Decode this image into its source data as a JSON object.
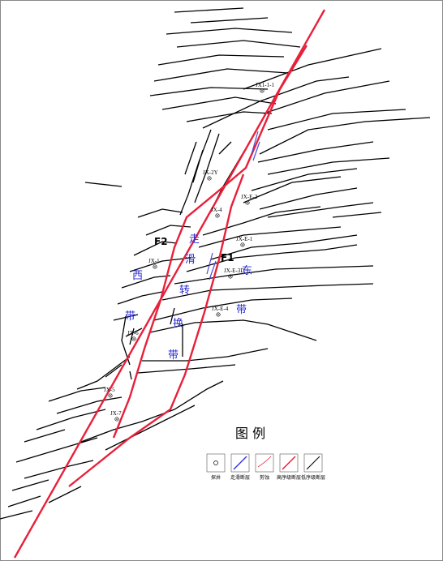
{
  "wells": [
    "JX1-1-1",
    "JX-2Y",
    "JX-E-2",
    "JX-4",
    "JX-E-1",
    "JX-1",
    "JX-E-3D",
    "JX-E-4",
    "JX-6",
    "JX-5",
    "JX-7"
  ],
  "faults": [
    "F2",
    "F1"
  ],
  "zones": [
    "走",
    "滑",
    "转",
    "换",
    "带",
    "西",
    "带",
    "东",
    "带"
  ],
  "legend": {
    "title": "图 例",
    "items": [
      "探井",
      "走滑断层",
      "剪蚀",
      "高序级断层",
      "低序级断层"
    ]
  }
}
